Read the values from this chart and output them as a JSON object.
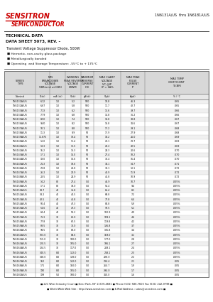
{
  "title_company": "SENSITRON",
  "title_sub": "SEMICONDUCTOR",
  "right_header": "1N6131A/US  thru 1N6181A/US",
  "tech_label": "TECHNICAL DATA",
  "sheet_label": "DATA SHEET 5073, REV. –",
  "product_desc": "Transient Voltage Suppressor Diode, 500W",
  "bullets": [
    "Hermetic, non-cavity glass package",
    "Metallurgically bonded",
    "Operating  and Storage Temperature: -55°C to + 175°C"
  ],
  "col_headers": [
    "SERIES\nTYPE",
    "MIN\nBREAKDOWN\nVOLTAGE\nVBR(min) at I(BR)",
    "WORKING\nPEAK REVERSE\nVOLTAGE\nVRWM",
    "MAXIMUM\nREVERSE\nCURRENT\nI(R)",
    "MAX CLAMP\nVOLTAGE\nVC @IP\nIP = 1A%",
    "MAX PEAK\nPULSE\nCURRENT\nIP",
    "MAX TEMP\nCOEFFICIENT\nTC(BR)"
  ],
  "unit_row1": [
    "Nominal",
    "V(dc)   mA (dc)",
    "V(dc)",
    "μA(dc)",
    "V(pk)",
    "A(pk)",
    "% / °C"
  ],
  "unit_row2": [
    "",
    "VBR   I(BR)",
    "VRWM",
    "IR",
    "VC @IP",
    "IP",
    "TC(BR)"
  ],
  "rows": [
    [
      "1N6131A/US",
      "6.12",
      "1.0",
      "5.2",
      "500",
      "10.8",
      "46.3",
      ".065"
    ],
    [
      "1N6132A/US",
      "6.67",
      "1.0",
      "5.8",
      "500",
      "11.7",
      "42.7",
      ".065"
    ],
    [
      "1N6133A/US",
      "7.13",
      "1.0",
      "6.2",
      "500",
      "12.6",
      "39.7",
      ".066"
    ],
    [
      "1N6134A/US",
      "7.79",
      "1.0",
      "6.8",
      "500",
      "13.8",
      "36.2",
      ".066"
    ],
    [
      "1N6135A/US",
      "8.50",
      "1.0",
      "7.4",
      "500",
      "14.8",
      "33.8",
      ".067"
    ],
    [
      "1N6136A/US",
      "9.40",
      "1.0",
      "8.2",
      "500",
      "15.8",
      "31.6",
      ".067"
    ],
    [
      "1N6137A/US",
      "10.1",
      "1.0",
      "8.8",
      "500",
      "17.2",
      "29.1",
      ".068"
    ],
    [
      "1N6138A/US",
      "11.3",
      "1.0",
      "9.9",
      "50",
      "17.9",
      "27.9",
      ".068"
    ],
    [
      "1N6139A/US",
      "11.875",
      "1.0",
      "10.4",
      "50",
      "19.2",
      "26.0",
      ".069"
    ],
    [
      "1N6140A/US",
      "13.0",
      "1.0",
      "11.4",
      "50",
      "21.1",
      "23.7",
      ".069"
    ],
    [
      "1N6141A/US",
      "14.3",
      "1.0",
      "12.5",
      "50",
      "22.2",
      "22.5",
      ".069"
    ],
    [
      "1N6142A/US",
      "15.2",
      "1.0",
      "13.3",
      "50",
      "24.3",
      "20.6",
      ".070"
    ],
    [
      "1N6143A/US",
      "17.1",
      "1.0",
      "15.0",
      "50",
      "27.4",
      "18.2",
      ".070"
    ],
    [
      "1N6144A/US",
      "19.0",
      "1.0",
      "16.6",
      "50",
      "30.4",
      "16.4",
      ".070"
    ],
    [
      "1N6145A/US",
      "21.3",
      "1.0",
      "18.6",
      "50",
      "34.1",
      "14.7",
      ".071"
    ],
    [
      "1N6146A/US",
      "23.8",
      "1.0",
      "20.8",
      "50",
      "38.1",
      "13.1",
      ".072"
    ],
    [
      "1N6147A/US",
      "26.2",
      "1.0",
      "22.9",
      "50",
      "41.9",
      "11.9",
      ".072"
    ],
    [
      "1N6148A/US",
      "28.5",
      "1.0",
      "24.9",
      "50",
      "45.8",
      "10.9",
      ".072"
    ],
    [
      "1N6149A/US",
      "14.2",
      "80",
      "27.4",
      "5.0",
      "46.9",
      "10.7",
      ".005%"
    ],
    [
      "1N6150A/US",
      "17.1",
      "80",
      "33.0",
      "5.0",
      "53.4",
      "9.4",
      ".005%"
    ],
    [
      "1N6151A/US",
      "33.7",
      "40",
      "35.8",
      "5.0",
      "61.4",
      "8.1",
      ".005%"
    ],
    [
      "1N6152A/US",
      "38.2",
      "40",
      "40.5",
      "5.0",
      "69.8",
      "7.2",
      ".005%"
    ],
    [
      "1N6153A/US",
      "42.5",
      "40",
      "45.8",
      "5.0",
      "77.8",
      "6.4",
      ".005%"
    ],
    [
      "1N6154A/US",
      "50.4",
      "40",
      "47.3",
      "5.0",
      "84.8",
      "5.9",
      ".005%"
    ],
    [
      "1N6155A/US",
      "54.6",
      "40",
      "47.3",
      "5.0",
      "97.5",
      "5.1",
      ".005%"
    ],
    [
      "1N6156A/US",
      "64.4",
      "40",
      "56.2",
      "5.0",
      "102.9",
      "4.9",
      ".005%"
    ],
    [
      "1N6157A/US",
      "71.3",
      "30",
      "62.0",
      "5.0",
      "109.1",
      "4.6",
      ".005%"
    ],
    [
      "1N6158A/US",
      "77.8",
      "30",
      "67.5",
      "5.0",
      "119.8",
      "4.2",
      ".005%"
    ],
    [
      "1N6159A/US",
      "88.5",
      "30",
      "76.0",
      "5.0",
      "136.8",
      "3.7",
      ".005%"
    ],
    [
      "1N6160A/US",
      "94.5",
      "30",
      "82.0",
      "5.0",
      "145.8",
      "3.4",
      ".005%"
    ],
    [
      "1N6161A/US",
      "103.0",
      "30",
      "89.6",
      "5.0",
      "159.0",
      "3.1",
      ".005%"
    ],
    [
      "1N6162A/US",
      "115.0",
      "30",
      "100.0",
      "5.0",
      "177.0",
      "2.8",
      ".005%"
    ],
    [
      "1N6163A/US",
      "120.5",
      "30",
      "105.0",
      "5.0",
      "186.1",
      "2.7",
      ".005%"
    ],
    [
      "1N6164A/US",
      "134.5",
      "30",
      "117.0",
      "5.0",
      "208.1",
      "2.4",
      ".005%"
    ],
    [
      "1N6165A/US",
      "140.5",
      "8.0",
      "122.0",
      "5.0",
      "218.1",
      "2.3",
      ".005%"
    ],
    [
      "1N6166A/US",
      "148.0",
      "8.0",
      "128.0",
      "5.0",
      "228.0",
      "2.2",
      ".005%"
    ],
    [
      "1N6167A/US",
      "152",
      "8.0",
      "132.0",
      "5.0",
      "234.4",
      "2.1",
      ".005"
    ],
    [
      "1N6168A/US",
      "171",
      "8.0",
      "150.0",
      "5.0",
      "264.7",
      "1.9",
      ".005"
    ],
    [
      "1N6169A/US",
      "190",
      "8.0",
      "165.0",
      "5.0",
      "294.0",
      "1.7",
      ".005"
    ],
    [
      "1N6181A/US",
      "199",
      "5.0",
      "180.0",
      "5.0",
      "310.0",
      "1.6",
      ".005"
    ]
  ],
  "footer": "■ 221 West Industry Court ■ Deer Park, NY 11729-4681 ■ Phone (631) 586-7600 Fax (631) 242-9798 ■",
  "footer2": "■ World Wide Web Site : http://www.sensitron.com ■ E-Mail Address : sales@sensitron.com ■",
  "bg_color": "#ffffff",
  "border_color": "#666666",
  "text_color": "#111111",
  "red_color": "#cc0000"
}
